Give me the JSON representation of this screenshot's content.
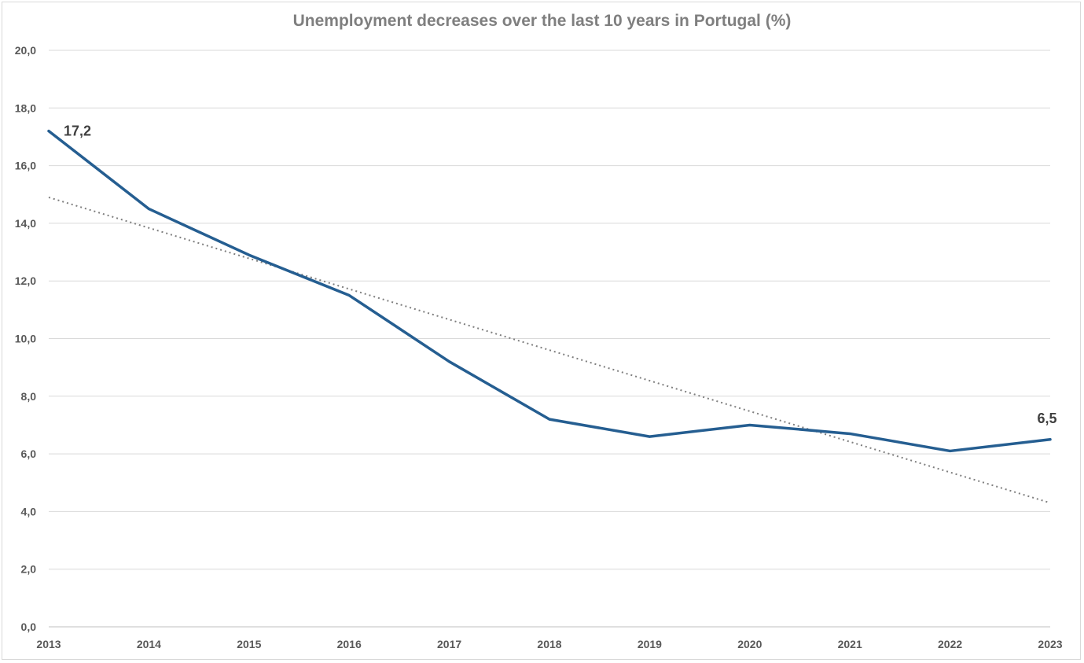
{
  "chart_data": {
    "type": "line",
    "title": "Unemployment decreases over the last 10 years in Portugal (%)",
    "xlabel": "",
    "ylabel": "",
    "x": [
      "2013",
      "2014",
      "2015",
      "2016",
      "2017",
      "2018",
      "2019",
      "2020",
      "2021",
      "2022",
      "2023"
    ],
    "series": [
      {
        "values": [
          17.2,
          14.5,
          12.9,
          11.5,
          9.2,
          7.2,
          6.6,
          7.0,
          6.7,
          6.1,
          6.5
        ],
        "color": "#255e91"
      }
    ],
    "trendline": {
      "type": "linear",
      "style": "dotted",
      "color": "#7f7f7f",
      "start": 14.9,
      "end": 4.3
    },
    "data_labels": [
      {
        "index": 0,
        "text": "17,2"
      },
      {
        "index": 10,
        "text": "6,5"
      }
    ],
    "y_ticks": [
      "0,0",
      "2,0",
      "4,0",
      "6,0",
      "8,0",
      "10,0",
      "12,0",
      "14,0",
      "16,0",
      "18,0",
      "20,0"
    ],
    "ylim": [
      0,
      20
    ],
    "y_step": 2,
    "grid": true,
    "legend": "none"
  }
}
